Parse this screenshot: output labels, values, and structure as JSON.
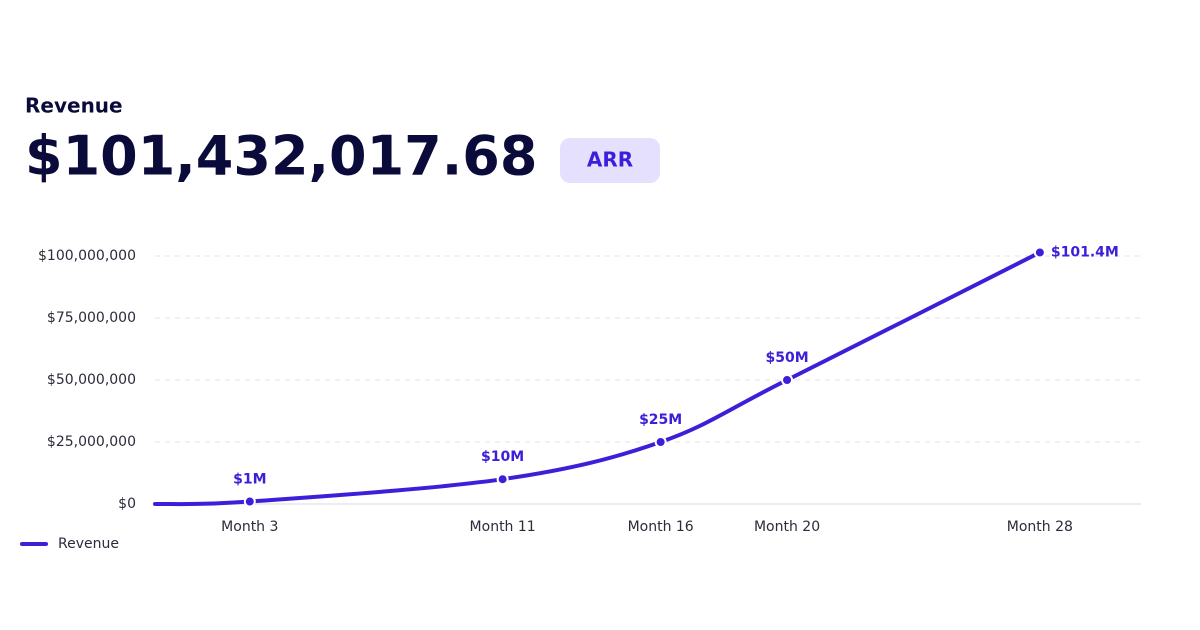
{
  "header": {
    "label": "Revenue",
    "value": "$101,432,017.68",
    "badge": "ARR"
  },
  "chart_data": {
    "type": "line",
    "x": [
      0,
      3,
      11,
      16,
      20,
      28
    ],
    "series": [
      {
        "name": "Revenue",
        "color": "#3d1fd9",
        "values": [
          0,
          1000000,
          10000000,
          25000000,
          50000000,
          101432017.68
        ],
        "value_labels": [
          null,
          "$1M",
          "$10M",
          "$25M",
          "$50M",
          "$101.4M"
        ]
      }
    ],
    "xlim": [
      0,
      31.2
    ],
    "xticks": [
      {
        "value": 3,
        "label": "Month 3"
      },
      {
        "value": 11,
        "label": "Month 11"
      },
      {
        "value": 16,
        "label": "Month 16"
      },
      {
        "value": 20,
        "label": "Month 20"
      },
      {
        "value": 28,
        "label": "Month 28"
      }
    ],
    "ylim": [
      0,
      105000000
    ],
    "yticks": [
      {
        "value": 0,
        "label": "$0"
      },
      {
        "value": 25000000,
        "label": "$25,000,000"
      },
      {
        "value": 50000000,
        "label": "$50,000,000"
      },
      {
        "value": 75000000,
        "label": "$75,000,000"
      },
      {
        "value": 100000000,
        "label": "$100,000,000"
      }
    ],
    "grid": true,
    "legend": "bottom-left"
  }
}
